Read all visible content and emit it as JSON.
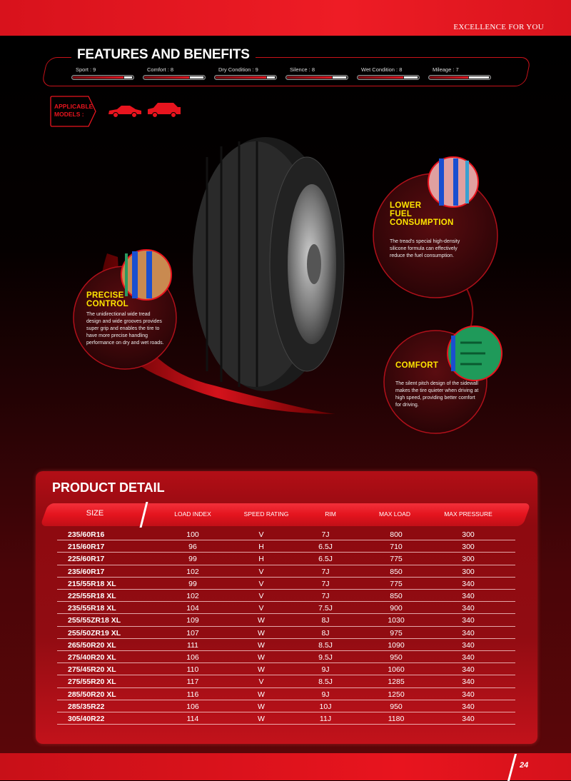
{
  "header": {
    "tagline": "EXCELLENCE FOR YOU"
  },
  "features": {
    "title": "FEATURES AND BENEFITS",
    "items": [
      {
        "label": "Sport : 9",
        "score": 9
      },
      {
        "label": "Comfort : 8",
        "score": 8
      },
      {
        "label": "Dry Condition : 9",
        "score": 9
      },
      {
        "label": "Silence : 8",
        "score": 8
      },
      {
        "label": "Wet Condition : 8",
        "score": 8
      },
      {
        "label": "Mileage : 7",
        "score": 7
      }
    ],
    "max_score": 10
  },
  "applicable_models": {
    "label_line1": "APPLICABLE",
    "label_line2": "MODELS :",
    "icons": [
      "sedan-icon",
      "hatchback-icon"
    ],
    "color": "#e8141e"
  },
  "callouts": {
    "precise": {
      "title1": "PRECISE",
      "title2": "CONTROL",
      "text": "The unidirectional wide tread design and wide grooves provides super grip and enables the tire to have more precise handling performance on dry and wet roads."
    },
    "fuel": {
      "title1": "LOWER",
      "title2": "FUEL",
      "title3": "CONSUMPTION",
      "text": "The tread's special high-density silicone formula can effectively reduce the fuel consumption."
    },
    "comfort": {
      "title1": "COMFORT",
      "text": "The silent pitch design of the sidewall makes the tire quieter when driving at high speed, providing better comfort for driving."
    }
  },
  "product": {
    "title": "PRODUCT DETAIL",
    "columns": [
      "SIZE",
      "LOAD INDEX",
      "SPEED RATING",
      "RIM",
      "MAX LOAD",
      "MAX PRESSURE"
    ],
    "rows": [
      [
        "235/60R16",
        "100",
        "V",
        "7J",
        "800",
        "300"
      ],
      [
        "215/60R17",
        "96",
        "H",
        "6.5J",
        "710",
        "300"
      ],
      [
        "225/60R17",
        "99",
        "H",
        "6.5J",
        "775",
        "300"
      ],
      [
        "235/60R17",
        "102",
        "V",
        "7J",
        "850",
        "300"
      ],
      [
        "215/55R18 XL",
        "99",
        "V",
        "7J",
        "775",
        "340"
      ],
      [
        "225/55R18 XL",
        "102",
        "V",
        "7J",
        "850",
        "340"
      ],
      [
        "235/55R18 XL",
        "104",
        "V",
        "7.5J",
        "900",
        "340"
      ],
      [
        "255/55ZR18 XL",
        "109",
        "W",
        "8J",
        "1030",
        "340"
      ],
      [
        "255/50ZR19 XL",
        "107",
        "W",
        "8J",
        "975",
        "340"
      ],
      [
        "265/50R20 XL",
        "111",
        "W",
        "8.5J",
        "1090",
        "340"
      ],
      [
        "275/40R20 XL",
        "106",
        "W",
        "9.5J",
        "950",
        "340"
      ],
      [
        "275/45R20 XL",
        "110",
        "W",
        "9J",
        "1060",
        "340"
      ],
      [
        "275/55R20 XL",
        "117",
        "V",
        "8.5J",
        "1285",
        "340"
      ],
      [
        "285/50R20 XL",
        "116",
        "W",
        "9J",
        "1250",
        "340"
      ],
      [
        "285/35R22",
        "106",
        "W",
        "10J",
        "950",
        "340"
      ],
      [
        "305/40R22",
        "114",
        "W",
        "11J",
        "1180",
        "340"
      ]
    ]
  },
  "footer": {
    "page_number": "24"
  },
  "colors": {
    "brand_red": "#e8141e",
    "highlight_yellow": "#ffe600"
  }
}
